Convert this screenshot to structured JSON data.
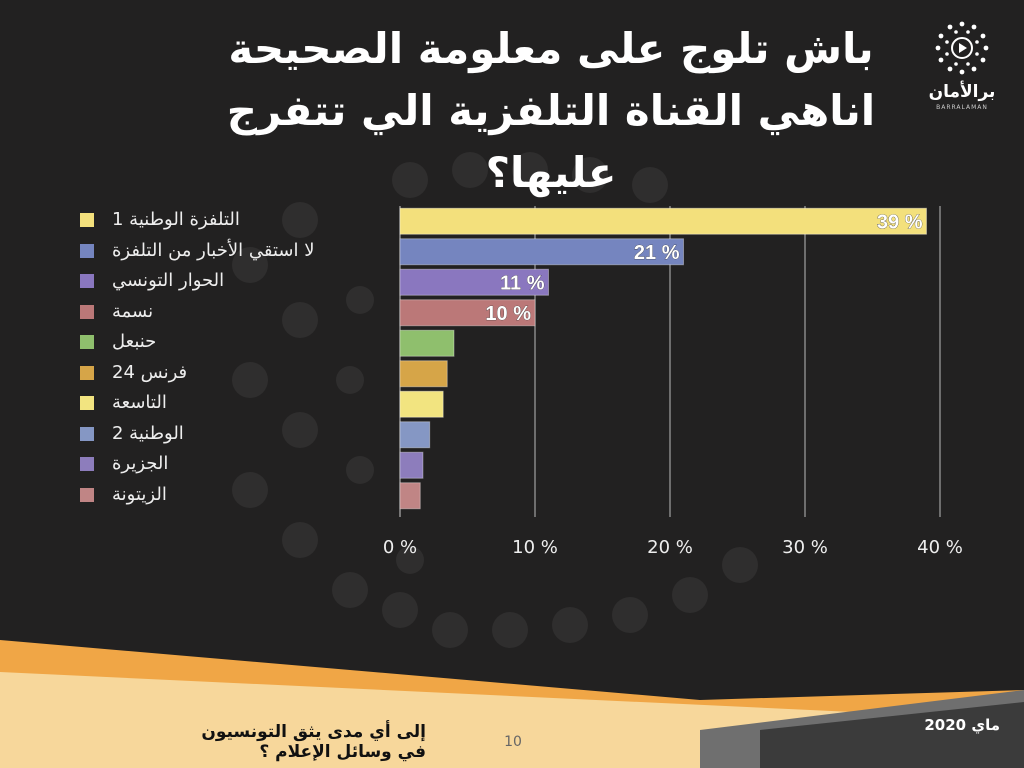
{
  "slide": {
    "title": "باش تلوج على معلومة الصحيحة اناهي القناة التلفزية الي تتفرج عليها؟",
    "logo_text": "برالأمان",
    "logo_subtext": "BARRALAMAN",
    "footer_text": "إلى أي مدى يثق التونسيون في وسائل الإعلام ؟",
    "date": "ماي 2020",
    "page_number": "10"
  },
  "chart_data": {
    "type": "bar",
    "orientation": "horizontal",
    "categories": [
      "التلفزة الوطنية 1",
      "لا استقي الأخبار من التلفزة",
      "الحوار التونسي",
      "نسمة",
      "حنبعل",
      "فرنس 24",
      "التاسعة",
      "الوطنية 2",
      "الجزيرة",
      "الزيتونة"
    ],
    "values": [
      39,
      21,
      11,
      10,
      4,
      3.5,
      3.2,
      2.2,
      1.7,
      1.5
    ],
    "data_labels": [
      "39 %",
      "21 %",
      "11 %",
      "10 %",
      "",
      "",
      "",
      "",
      "",
      ""
    ],
    "colors": [
      "#f3e07c",
      "#7585bf",
      "#8a77bf",
      "#bb7878",
      "#8fbf6d",
      "#d6a548",
      "#f2e480",
      "#8597c4",
      "#8d7dbc",
      "#c08585"
    ],
    "xlim": [
      0,
      40
    ],
    "xticks": [
      "0 %",
      "10 %",
      "20 %",
      "30 %",
      "40 %"
    ],
    "grid": true,
    "legend_position": "left"
  }
}
